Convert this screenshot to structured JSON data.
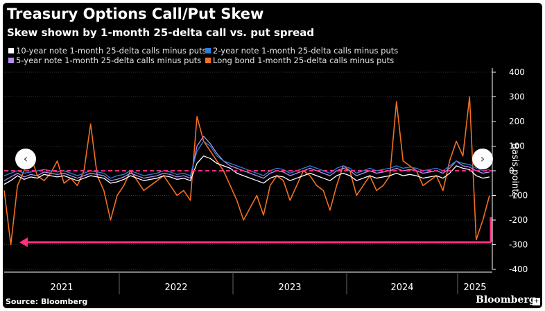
{
  "chart_data": {
    "type": "line",
    "title": "Treasury Options Call/Put Skew",
    "subtitle": "Skew shown by 1-month 25-delta call vs. put spread",
    "ylabel": "Basis points",
    "ylim": [
      -400,
      400
    ],
    "yticks": [
      400,
      300,
      200,
      100,
      0,
      -100,
      -200,
      -300,
      -400
    ],
    "xlabels": [
      "2021",
      "2022",
      "2023",
      "2024",
      "2025"
    ],
    "grid": true,
    "legend_position": "top-left",
    "series": [
      {
        "name": "10-year note 1-month 25-delta calls minus puts",
        "color": "#ffffff",
        "values": [
          -55,
          -40,
          -20,
          -35,
          -25,
          -30,
          -15,
          -20,
          -25,
          -20,
          -30,
          -40,
          -30,
          -20,
          -25,
          -30,
          -50,
          -45,
          -35,
          -20,
          -30,
          -40,
          -35,
          -30,
          -20,
          -25,
          -35,
          -30,
          -40,
          30,
          60,
          50,
          30,
          20,
          10,
          -10,
          -20,
          -30,
          -40,
          -50,
          -30,
          -20,
          -25,
          -40,
          -30,
          -20,
          -10,
          -20,
          -30,
          -40,
          -20,
          -10,
          -20,
          -40,
          -30,
          -20,
          -30,
          -25,
          -20,
          -10,
          -20,
          -15,
          -20,
          -30,
          -25,
          -20,
          -30,
          -10,
          20,
          10,
          5,
          -20,
          -30,
          -25
        ]
      },
      {
        "name": "2-year note 1-month 25-delta calls minus puts",
        "color": "#2d7fd8",
        "values": [
          -20,
          -10,
          0,
          -10,
          -5,
          0,
          5,
          0,
          -5,
          0,
          -10,
          -20,
          -10,
          0,
          -5,
          -10,
          -30,
          -20,
          -15,
          0,
          -10,
          -20,
          -15,
          -10,
          0,
          -5,
          -15,
          -10,
          -20,
          80,
          120,
          100,
          60,
          40,
          30,
          20,
          10,
          0,
          -10,
          -20,
          0,
          10,
          5,
          -10,
          0,
          10,
          20,
          10,
          0,
          -10,
          10,
          20,
          10,
          -10,
          0,
          10,
          0,
          5,
          10,
          20,
          10,
          15,
          10,
          0,
          5,
          10,
          0,
          20,
          40,
          30,
          25,
          10,
          0,
          5
        ]
      },
      {
        "name": "5-year note 1-month 25-delta calls minus puts",
        "color": "#b68cf0",
        "values": [
          -40,
          -25,
          -10,
          -25,
          -15,
          -20,
          -5,
          -10,
          -15,
          -10,
          -20,
          -30,
          -20,
          -10,
          -15,
          -20,
          -40,
          -35,
          -25,
          -10,
          -20,
          -30,
          -25,
          -20,
          -10,
          -15,
          -25,
          -20,
          -30,
          100,
          140,
          110,
          70,
          40,
          20,
          10,
          0,
          -10,
          -20,
          -30,
          -10,
          0,
          -5,
          -20,
          -10,
          0,
          10,
          0,
          -10,
          -20,
          0,
          10,
          0,
          -20,
          -10,
          0,
          -10,
          -5,
          0,
          10,
          0,
          5,
          0,
          -10,
          -5,
          0,
          -10,
          10,
          40,
          20,
          15,
          0,
          -10,
          -5
        ]
      },
      {
        "name": "Long bond 1-month 25-delta calls minus puts",
        "color": "#f36f21",
        "values": [
          -80,
          -300,
          -60,
          0,
          60,
          -20,
          -40,
          -10,
          40,
          -50,
          -30,
          -60,
          0,
          190,
          -20,
          -80,
          -200,
          -100,
          -60,
          0,
          -40,
          -80,
          -60,
          -40,
          -20,
          -60,
          -100,
          -80,
          -120,
          220,
          120,
          80,
          40,
          0,
          -60,
          -120,
          -200,
          -150,
          -100,
          -180,
          -60,
          -20,
          -40,
          -120,
          -60,
          0,
          -20,
          -60,
          -80,
          -160,
          -60,
          20,
          0,
          -100,
          -60,
          -20,
          -80,
          -60,
          -20,
          280,
          40,
          20,
          0,
          -60,
          -40,
          -20,
          -80,
          40,
          120,
          60,
          300,
          -280,
          -200,
          -100
        ]
      }
    ],
    "annotations": [
      {
        "type": "hline",
        "y": 0,
        "style": "dashed",
        "color": "#ff2e7e"
      },
      {
        "type": "arrow",
        "y": -290,
        "from": "2025",
        "to": "2021",
        "color": "#ff2e7e"
      }
    ]
  },
  "source": "Source: Bloomberg",
  "brand": "Bloomberg",
  "brand_mark": "+",
  "nav": {
    "prev": "‹",
    "next": "›"
  }
}
